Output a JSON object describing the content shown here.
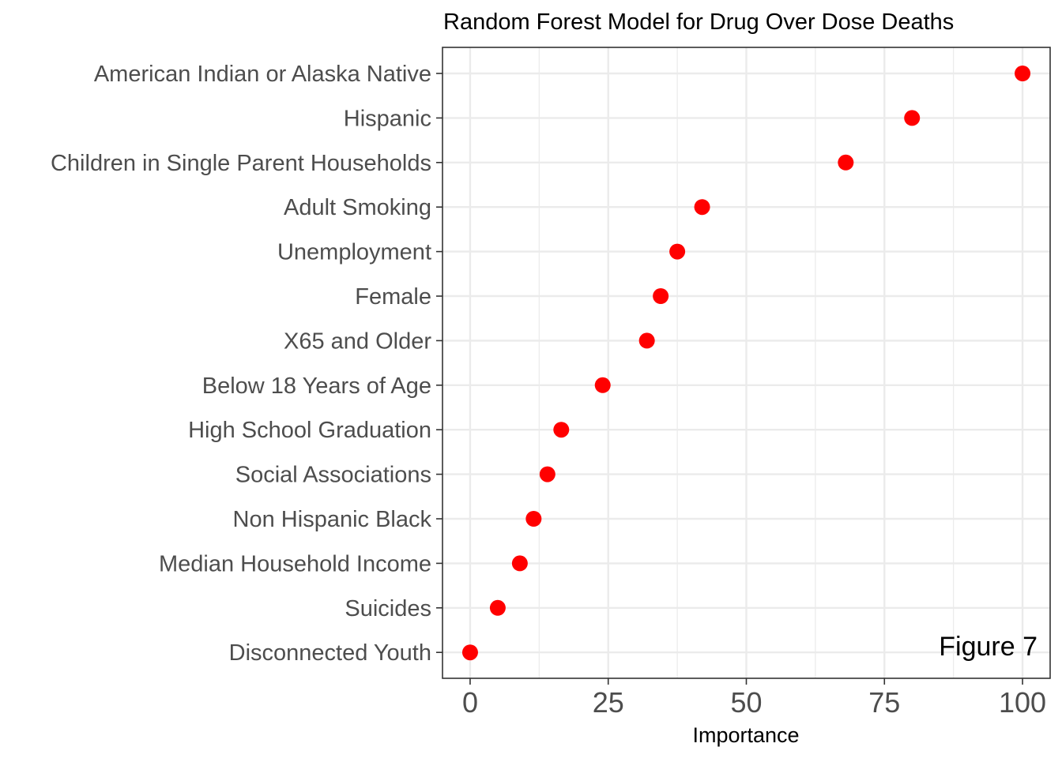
{
  "chart_data": {
    "type": "scatter",
    "title": "Random Forest Model for Drug Over Dose Deaths",
    "xlabel": "Importance",
    "ylabel": "",
    "xlim": [
      -5,
      105
    ],
    "xticks": [
      0,
      25,
      50,
      75,
      100
    ],
    "xtick_labels": [
      "0",
      "25",
      "50",
      "75",
      "100"
    ],
    "grid": true,
    "annotation": "Figure 7",
    "annotation_position": "bottom-right",
    "point_color": "#ff0000",
    "categories": [
      "American Indian or Alaska Native",
      "Hispanic",
      "Children in Single Parent Households",
      "Adult Smoking",
      "Unemployment",
      "Female",
      "X65 and Older",
      "Below 18 Years of Age",
      "High School Graduation",
      "Social Associations",
      "Non Hispanic Black",
      "Median Household Income",
      "Suicides",
      "Disconnected Youth"
    ],
    "values": [
      100,
      80,
      68,
      42,
      37.5,
      34.5,
      32,
      24,
      16.5,
      14,
      11.5,
      9,
      5,
      0
    ]
  }
}
